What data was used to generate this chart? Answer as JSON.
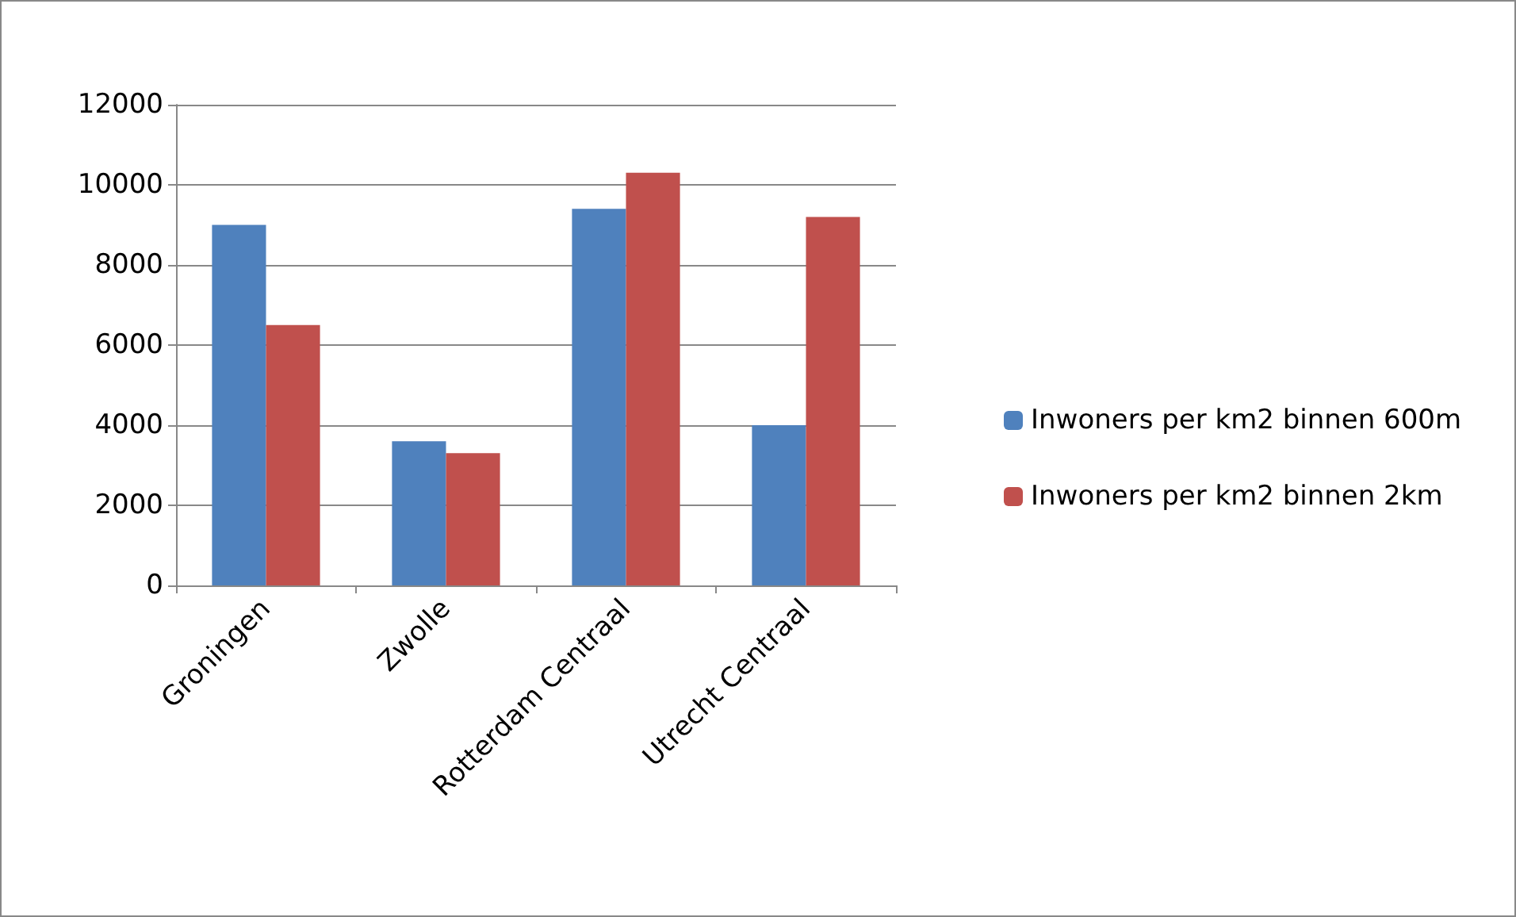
{
  "chart_data": {
    "type": "bar",
    "categories": [
      "Groningen",
      "Zwolle",
      "Rotterdam Centraal",
      "Utrecht Centraal"
    ],
    "series": [
      {
        "name": "Inwoners per km2 binnen 600m",
        "color": "#4f81bd",
        "values": [
          9000,
          3600,
          9400,
          4000
        ]
      },
      {
        "name": "Inwoners per km2 binnen 2km",
        "color": "#c0504d",
        "values": [
          6500,
          3300,
          10300,
          9200
        ]
      }
    ],
    "ylim": [
      0,
      12000
    ],
    "yticks": [
      0,
      2000,
      4000,
      6000,
      8000,
      10000,
      12000
    ],
    "grid": "y",
    "legend": "right"
  }
}
